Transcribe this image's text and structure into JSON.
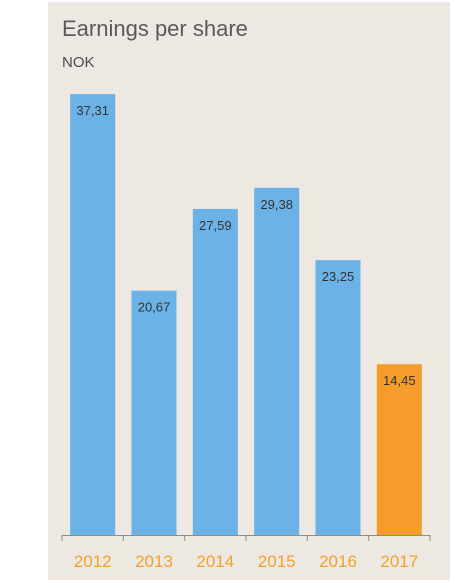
{
  "chart_data": {
    "type": "bar",
    "title": "Earnings per share",
    "subtitle": "NOK",
    "xlabel": "",
    "ylabel": "",
    "categories": [
      "2012",
      "2013",
      "2014",
      "2015",
      "2016",
      "2017"
    ],
    "values": [
      37.31,
      20.67,
      27.59,
      29.38,
      23.25,
      14.45
    ],
    "value_labels": [
      "37,31",
      "20,67",
      "27,59",
      "29,38",
      "23,25",
      "14,45"
    ],
    "ylim": [
      0,
      38.5
    ],
    "grid": false,
    "legend": "none",
    "colors": {
      "bar": "#6BB2E6",
      "highlight_bar": "#F59C2A",
      "highlight_category": "2017",
      "tick_label": "#F2A22C",
      "value_label": "#333333",
      "axis": "#8c8c8c",
      "background": "#EEE8E3"
    }
  }
}
